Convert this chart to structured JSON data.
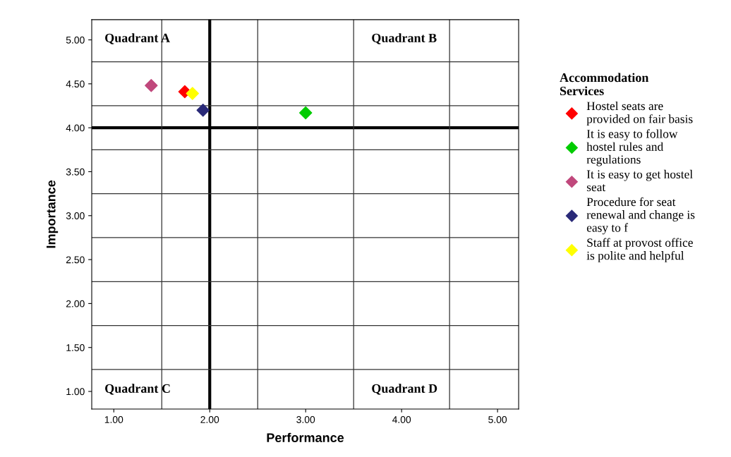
{
  "chart_data": {
    "type": "scatter",
    "xlabel": "Performance",
    "ylabel": "Importance",
    "legend_title": "Accommodation Services",
    "xlim": [
      0.77,
      5.22
    ],
    "ylim": [
      0.8,
      5.23
    ],
    "xticks": [
      {
        "value": 1,
        "label": "1.00"
      },
      {
        "value": 2,
        "label": "2.00"
      },
      {
        "value": 3,
        "label": "3.00"
      },
      {
        "value": 4,
        "label": "4.00"
      },
      {
        "value": 5,
        "label": "5.00"
      }
    ],
    "yticks": [
      {
        "value": 1,
        "label": "1.00"
      },
      {
        "value": 1.5,
        "label": "1.50"
      },
      {
        "value": 2,
        "label": "2.00"
      },
      {
        "value": 2.5,
        "label": "2.50"
      },
      {
        "value": 3,
        "label": "3.00"
      },
      {
        "value": 3.5,
        "label": "3.50"
      },
      {
        "value": 4,
        "label": "4.00"
      },
      {
        "value": 4.5,
        "label": "4.50"
      },
      {
        "value": 5,
        "label": "5.00"
      }
    ],
    "marker": "diamond",
    "legend": "right",
    "series": [
      {
        "name": "Hostel seats are provided on fair basis",
        "color": "#ff0000",
        "x": [
          1.74
        ],
        "values": [
          4.41
        ]
      },
      {
        "name": "It is easy to follow hostel rules and regulations",
        "color": "#00cc00",
        "x": [
          3.0
        ],
        "values": [
          4.17
        ]
      },
      {
        "name": "It is easy to get hostel seat",
        "color": "#c0487c",
        "x": [
          1.39
        ],
        "values": [
          4.48
        ]
      },
      {
        "name": "Procedure for seat renewal and change is easy to f",
        "color": "#2a2a78",
        "x": [
          1.93
        ],
        "values": [
          4.2
        ]
      },
      {
        "name": "Staff at provost office is polite and helpful",
        "color": "#ffff00",
        "x": [
          1.82
        ],
        "values": [
          4.39
        ]
      }
    ],
    "ref_lines": [
      {
        "axis": "x",
        "value": 2,
        "color": "#000000"
      },
      {
        "axis": "y",
        "value": 4,
        "color": "#000000"
      },
      {
        "axis": "x",
        "value": 1.5,
        "color": "#333333"
      },
      {
        "axis": "x",
        "value": 2.5,
        "color": "#333333"
      },
      {
        "axis": "x",
        "value": 3.5,
        "color": "#333333"
      },
      {
        "axis": "x",
        "value": 4.5,
        "color": "#333333"
      },
      {
        "axis": "y",
        "value": 1.25,
        "color": "#333333"
      },
      {
        "axis": "y",
        "value": 1.75,
        "color": "#333333"
      },
      {
        "axis": "y",
        "value": 2.25,
        "color": "#333333"
      },
      {
        "axis": "y",
        "value": 2.75,
        "color": "#333333"
      },
      {
        "axis": "y",
        "value": 3.25,
        "color": "#333333"
      },
      {
        "axis": "y",
        "value": 3.75,
        "color": "#333333"
      },
      {
        "axis": "y",
        "value": 4.25,
        "color": "#333333"
      },
      {
        "axis": "y",
        "value": 4.75,
        "color": "#333333"
      }
    ],
    "annotations": [
      "Quadrant A",
      "Quadrant B",
      "Quadrant C",
      "Quadrant D"
    ]
  }
}
